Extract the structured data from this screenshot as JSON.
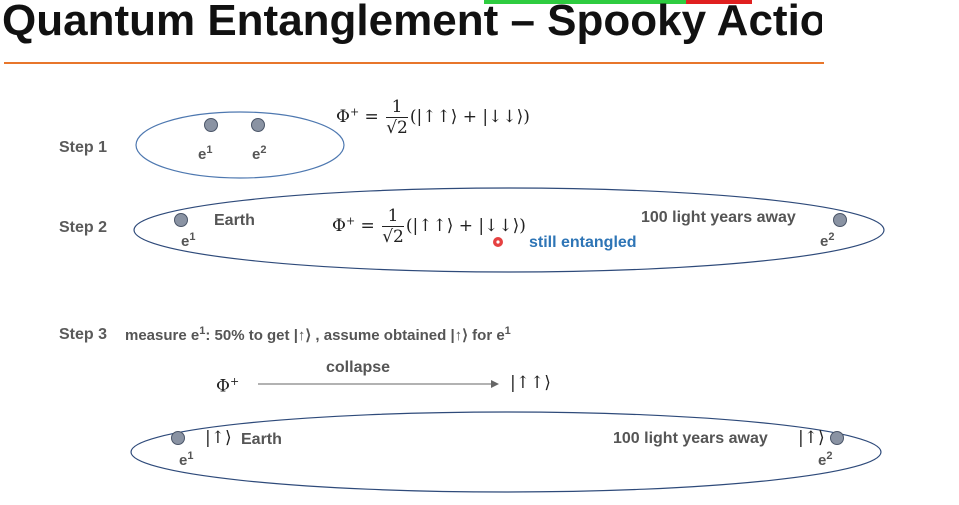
{
  "title": "Quantum Entanglement – Spooky Actior",
  "steps": {
    "step1": {
      "label": "Step 1",
      "e1": "e",
      "e1_sup": "1",
      "e2": "e",
      "e2_sup": "2",
      "eq_lhs": "Φ",
      "eq_sup": "+",
      "eq_num": "1",
      "eq_den": "√2",
      "eq_rhs": "(|↑↑⟩ + |↓↓⟩)"
    },
    "step2": {
      "label": "Step 2",
      "earth": "Earth",
      "far": "100 light years away",
      "e1": "e",
      "e1_sup": "1",
      "e2": "e",
      "e2_sup": "2",
      "eq_lhs": "Φ",
      "eq_sup": "+",
      "eq_num": "1",
      "eq_den": "√2",
      "eq_rhs": "(|↑↑⟩ + |↓↓⟩)",
      "note": "still entangled"
    },
    "step3": {
      "label": "Step 3",
      "desc_a": "measure e",
      "desc_sup": "1",
      "desc_b": ": 50% to get |↑⟩ , assume obtained |↑⟩ for e",
      "desc_sup2": "1",
      "phi": "Φ",
      "phi_sup": "+",
      "collapse": "collapse",
      "result": "|↑↑⟩",
      "left_ket": "|↑⟩",
      "earth": "Earth",
      "far": "100 light years away",
      "right_ket": "|↑⟩",
      "e1": "e",
      "e1_sup": "1",
      "e2": "e",
      "e2_sup": "2"
    }
  },
  "colors": {
    "ellipse": "#2e4a7a",
    "dot_fill": "#8a93a3",
    "accent_rule": "#e8762b",
    "note": "#2e75b6",
    "pointer": "#e02020"
  }
}
